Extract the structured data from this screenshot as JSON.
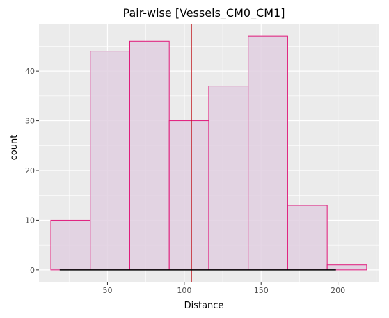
{
  "chart_data": {
    "type": "bar",
    "title": "Pair-wise [Vessels_CM0_CM1]",
    "xlabel": "Distance",
    "ylabel": "count",
    "xlim": [
      5.4,
      226.9
    ],
    "ylim": [
      -2.4,
      49.4
    ],
    "x_ticks": [
      50,
      100,
      150,
      200
    ],
    "y_ticks": [
      0,
      10,
      20,
      30,
      40
    ],
    "bins": [
      {
        "x0": 13.1,
        "x1": 38.8,
        "count": 10
      },
      {
        "x0": 38.8,
        "x1": 64.5,
        "count": 44
      },
      {
        "x0": 64.5,
        "x1": 90.2,
        "count": 46
      },
      {
        "x0": 90.2,
        "x1": 115.9,
        "count": 30
      },
      {
        "x0": 115.9,
        "x1": 141.6,
        "count": 37
      },
      {
        "x0": 141.6,
        "x1": 167.3,
        "count": 47
      },
      {
        "x0": 167.3,
        "x1": 193.0,
        "count": 13
      },
      {
        "x0": 193.0,
        "x1": 218.7,
        "count": 1
      }
    ],
    "vline_x": 104.7,
    "hline": {
      "x0": 18.9,
      "x1": 198.7,
      "y": 0
    },
    "grid": true,
    "colors": {
      "panel": "#ebebeb",
      "grid": "#ffffff",
      "bar_fill": "#e0cfe0",
      "bar_stroke": "#e0197a",
      "vline": "#c0141a",
      "hline": "#000000"
    }
  }
}
